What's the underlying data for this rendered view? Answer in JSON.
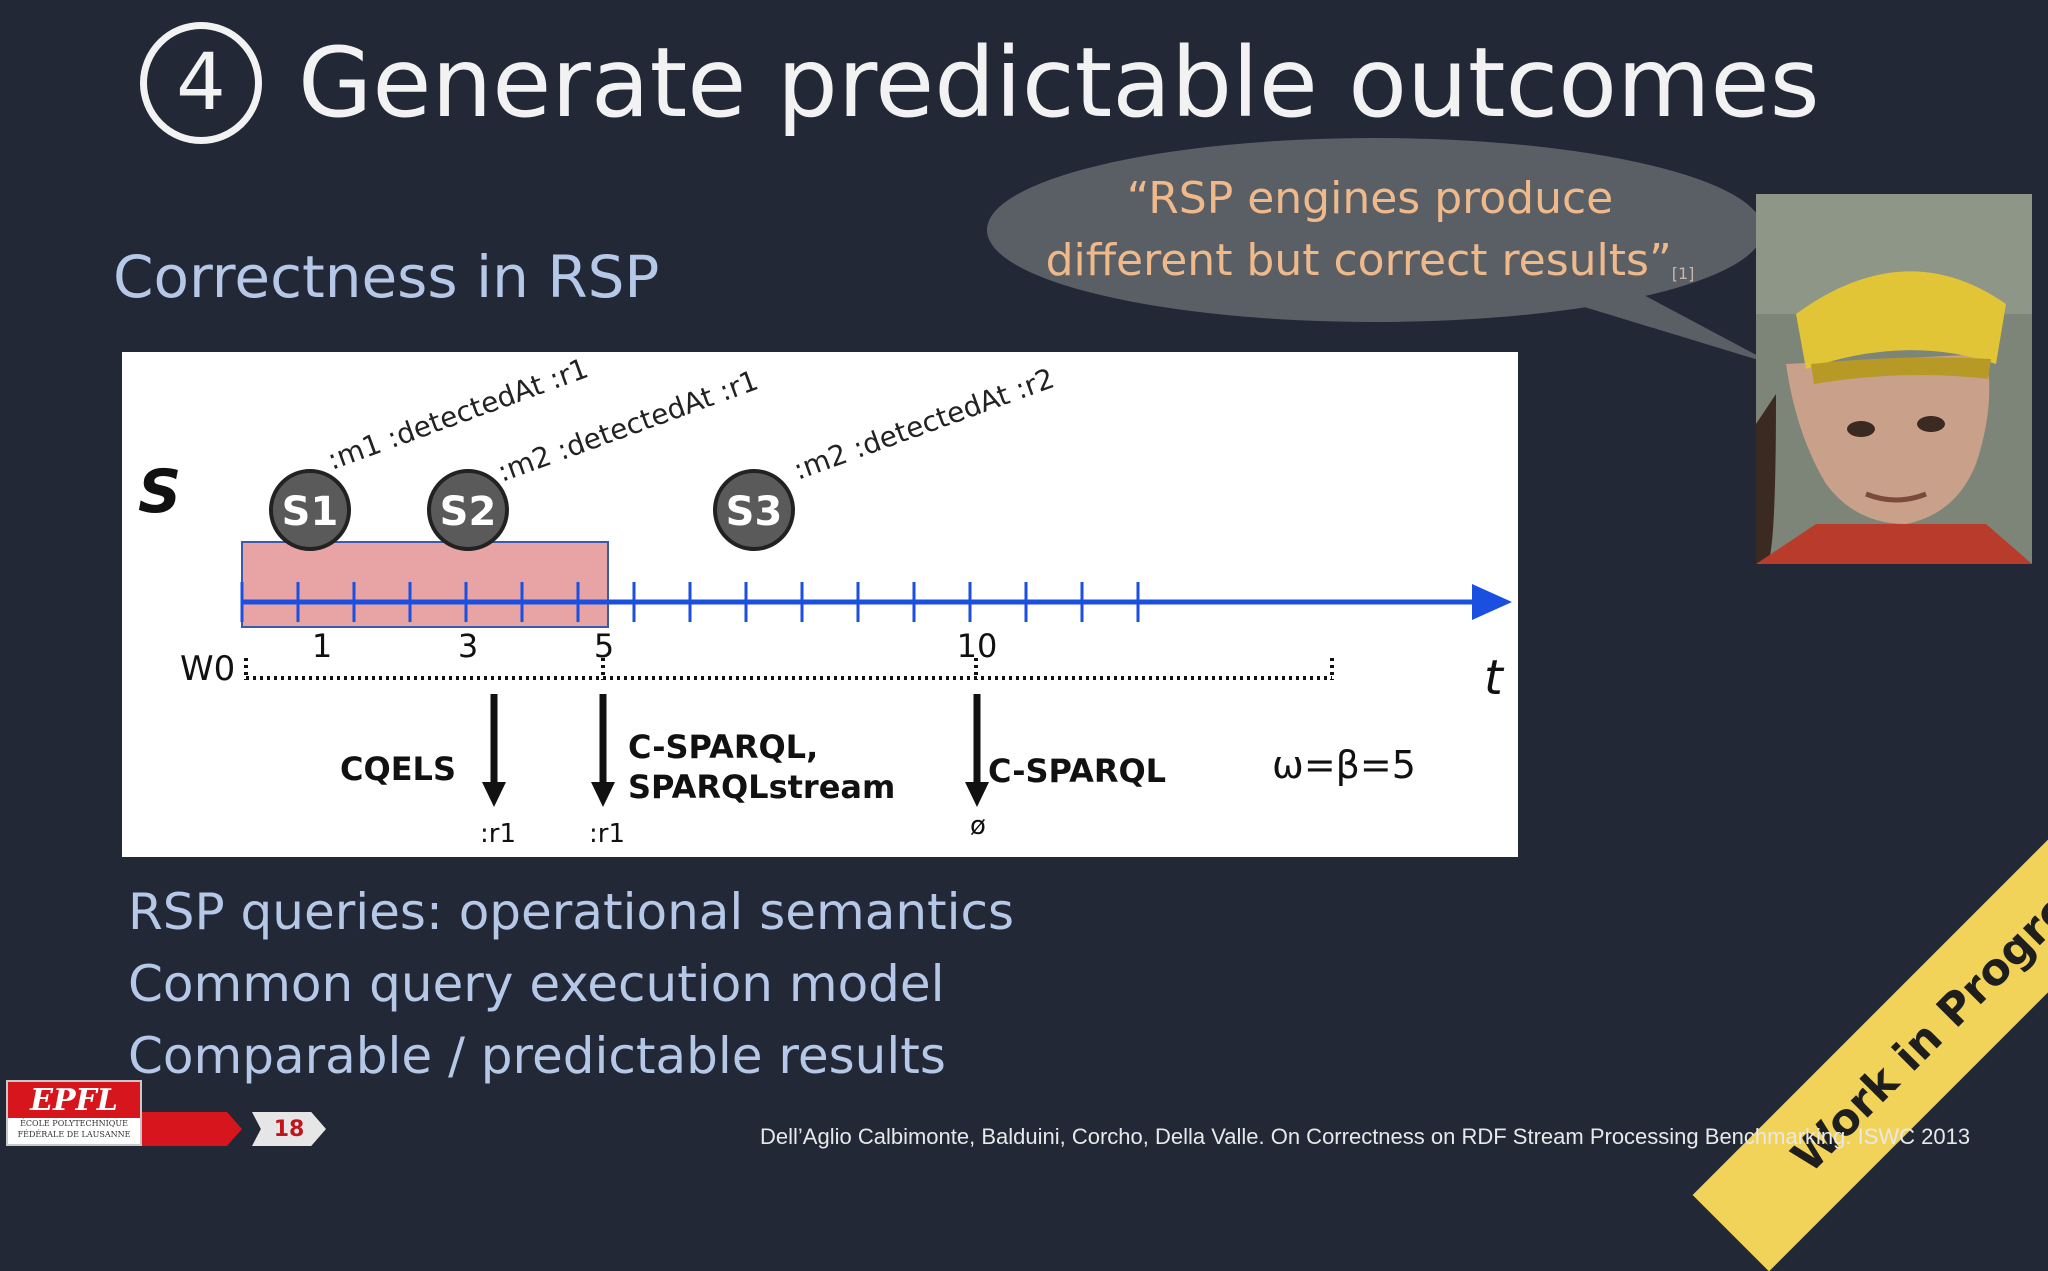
{
  "slide": {
    "badge": "4",
    "title": "Generate predictable outcomes",
    "subtitle": "Correctness in RSP",
    "quote": "“RSP engines produce different but correct results”",
    "quote_ref": "[1]",
    "bullets": [
      "RSP queries: operational semantics",
      "Common query execution model",
      "Comparable / predictable results"
    ],
    "ribbon": "Work in Progress",
    "page_number": "18",
    "logo_text": "EPFL",
    "logo_sub_1": "ÉCOLE POLYTECHNIQUE",
    "logo_sub_2": "FÉDÉRALE DE LAUSANNE",
    "citation": "Dell’Aglio Calbimonte, Balduini, Corcho, Della Valle. On Correctness on RDF Stream Processing  Benchmarking. ISWC 2013"
  },
  "diagram": {
    "stream_label": "S",
    "window_label": "W0",
    "time_label": "t",
    "params": "ω=β=5",
    "events": [
      {
        "name": "S1",
        "label": ":m1 :detectedAt :r1",
        "time": 1
      },
      {
        "name": "S2",
        "label": ":m2 :detectedAt :r1",
        "time": 3
      },
      {
        "name": "S3",
        "label": ":m2 :detectedAt :r2",
        "time": 7
      }
    ],
    "ticks": [
      "1",
      "3",
      "5",
      "10"
    ],
    "outputs": [
      {
        "engine": "CQELS",
        "result": ":r1"
      },
      {
        "engine": "C-SPARQL,",
        "engine2": "SPARQLstream",
        "result": ":r1"
      },
      {
        "engine": "C-SPARQL",
        "result": "ø"
      }
    ]
  },
  "colors": {
    "background": "#222835",
    "title": "#f2f2f2",
    "subtitle": "#b5c8e8",
    "quote": "#f0b98a",
    "axis": "#1a4fe0",
    "window_fill": "#e8a4a4",
    "ribbon": "#f2d35a"
  }
}
